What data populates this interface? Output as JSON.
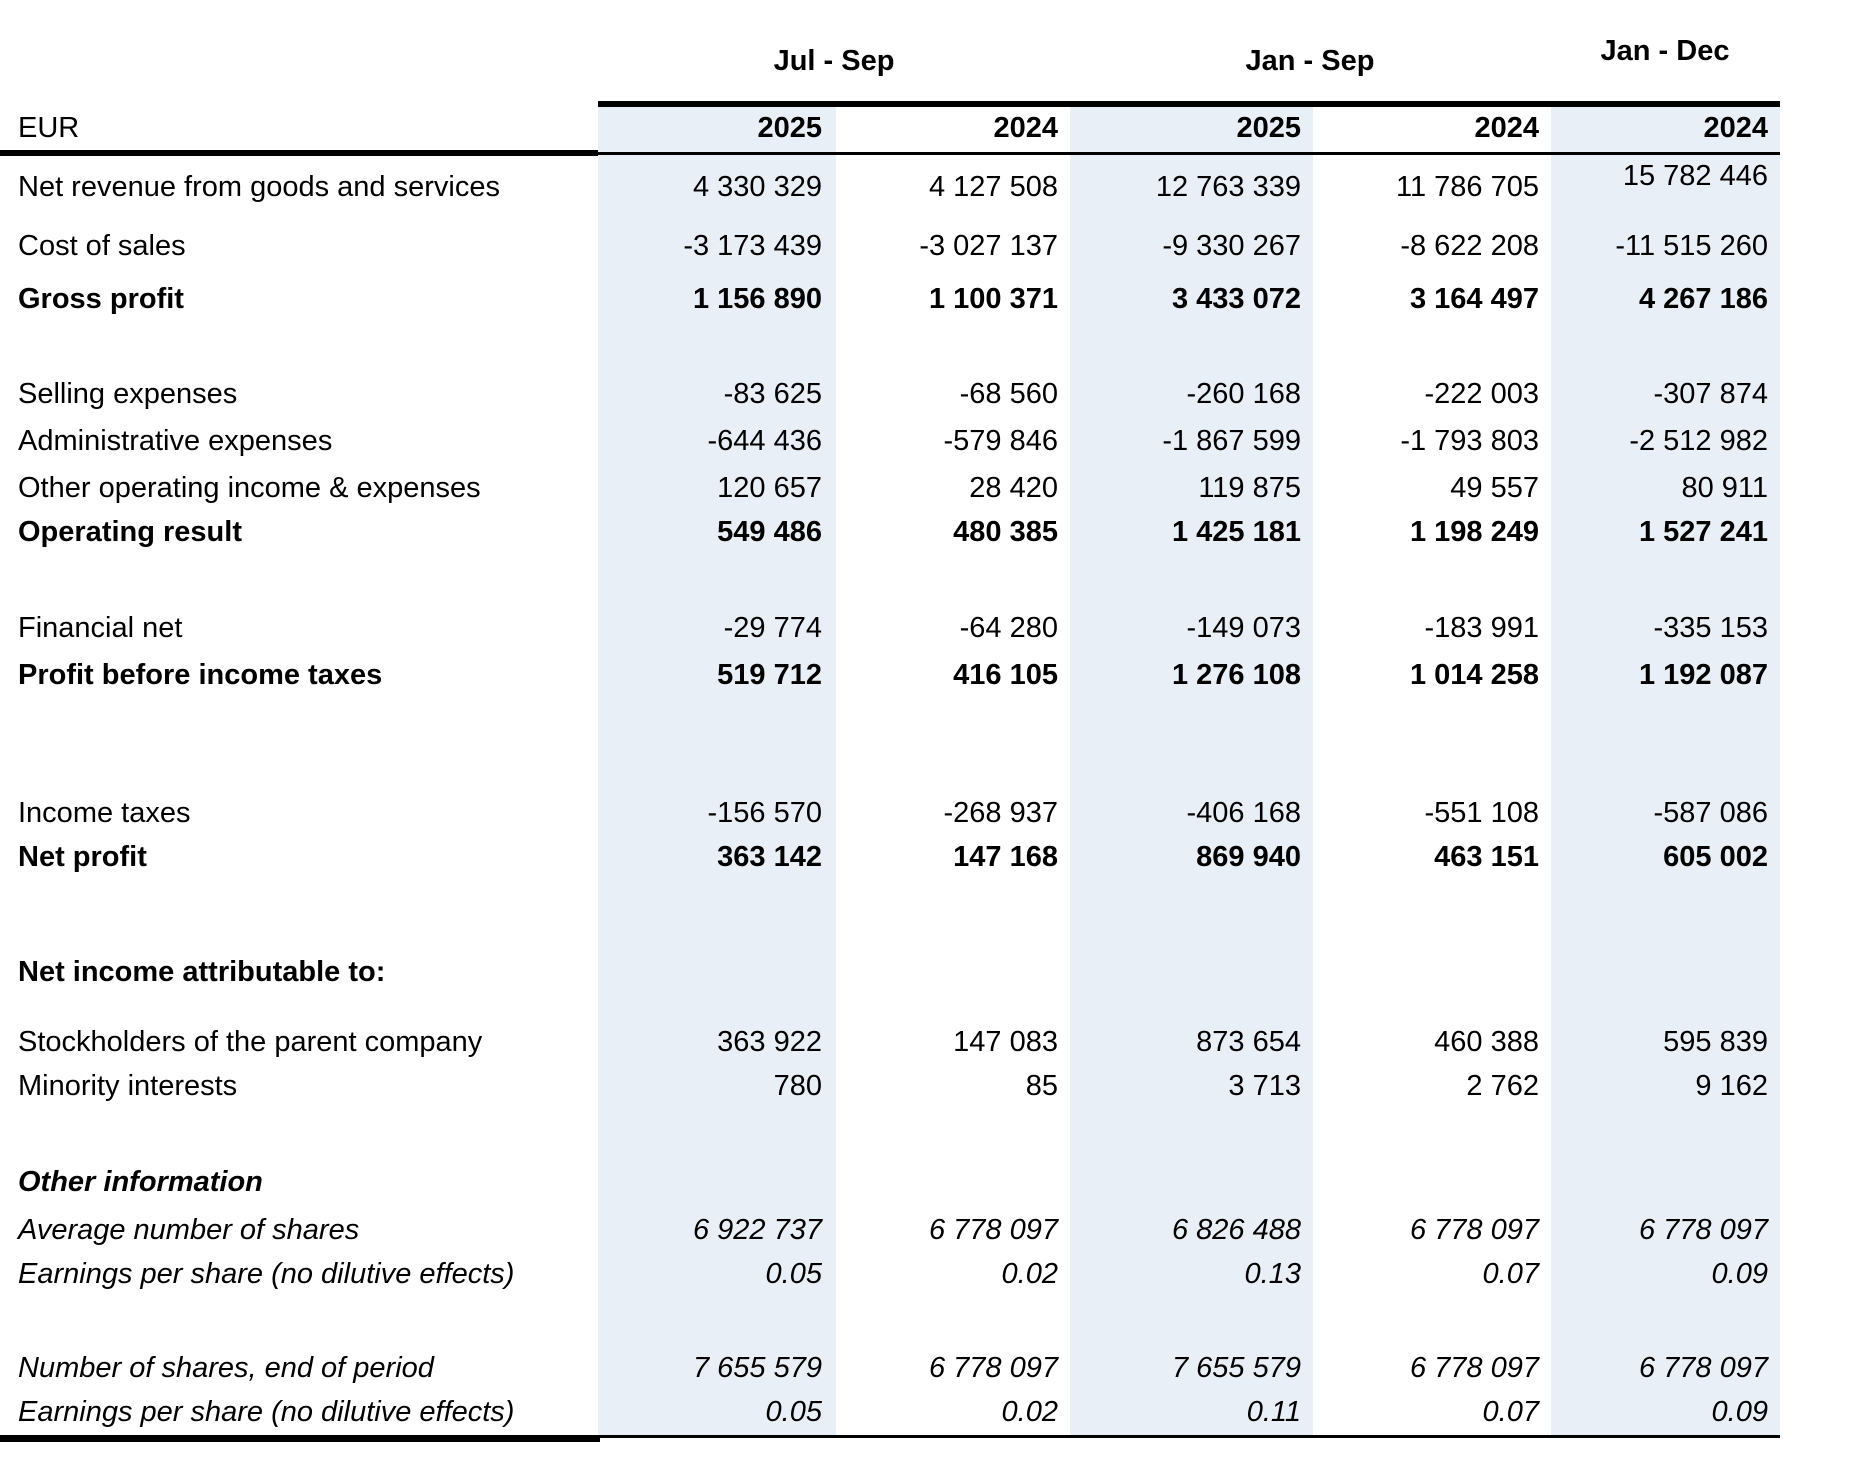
{
  "colors": {
    "background": "#ffffff",
    "shaded_column": "#e8eff7",
    "border": "#000000",
    "text": "#000000"
  },
  "table": {
    "unit_label": "EUR",
    "column_groups": [
      {
        "label": "Jul - Sep",
        "span": 2
      },
      {
        "label": "Jan - Sep",
        "span": 2
      },
      {
        "label": "Jan - Dec",
        "span": 1
      }
    ],
    "year_headers": [
      "2025",
      "2024",
      "2025",
      "2024",
      "2024"
    ],
    "rows": [
      {
        "label": "Net revenue from goods and services",
        "style": "normal",
        "values": [
          "4 330 329",
          "4 127 508",
          "12 763 339",
          "11 786 705",
          "15 782 446"
        ]
      },
      {
        "label": "Cost of sales",
        "style": "normal",
        "values": [
          "-3 173 439",
          "-3 027 137",
          "-9 330 267",
          "-8 622 208",
          "-11 515 260"
        ]
      },
      {
        "label": "Gross profit",
        "style": "bold",
        "values": [
          "1 156 890",
          "1 100 371",
          "3 433 072",
          "3 164 497",
          "4 267 186"
        ]
      },
      {
        "label": "Selling expenses",
        "style": "normal",
        "values": [
          "-83 625",
          "-68 560",
          "-260 168",
          "-222 003",
          "-307 874"
        ]
      },
      {
        "label": "Administrative expenses",
        "style": "normal",
        "values": [
          "-644 436",
          "-579 846",
          "-1 867 599",
          "-1 793 803",
          "-2 512 982"
        ]
      },
      {
        "label": "Other operating income & expenses",
        "style": "normal",
        "values": [
          "120 657",
          "28 420",
          "119 875",
          "49 557",
          "80 911"
        ]
      },
      {
        "label": "Operating result",
        "style": "bold",
        "values": [
          "549 486",
          "480 385",
          "1 425 181",
          "1 198 249",
          "1 527 241"
        ]
      },
      {
        "label": "Financial net",
        "style": "normal",
        "values": [
          "-29 774",
          "-64 280",
          "-149 073",
          "-183 991",
          "-335 153"
        ]
      },
      {
        "label": "Profit before income taxes",
        "style": "bold",
        "values": [
          "519 712",
          "416 105",
          "1 276 108",
          "1 014 258",
          "1 192 087"
        ]
      },
      {
        "label": "Income taxes",
        "style": "normal",
        "values": [
          "-156 570",
          "-268 937",
          "-406 168",
          "-551 108",
          "-587 086"
        ]
      },
      {
        "label": "Net profit",
        "style": "bold",
        "values": [
          "363 142",
          "147 168",
          "869 940",
          "463 151",
          "605 002"
        ]
      },
      {
        "label": "Net income attributable to:",
        "style": "bold",
        "values": [
          "",
          "",
          "",
          "",
          ""
        ]
      },
      {
        "label": "Stockholders of the parent company",
        "style": "normal",
        "values": [
          "363 922",
          "147 083",
          "873 654",
          "460 388",
          "595 839"
        ]
      },
      {
        "label": "Minority interests",
        "style": "normal",
        "values": [
          "780",
          "85",
          "3 713",
          "2 762",
          "9 162"
        ]
      },
      {
        "label": "Other information",
        "style": "bold-italic",
        "values": [
          "",
          "",
          "",
          "",
          ""
        ]
      },
      {
        "label": "Average number of shares",
        "style": "italic",
        "values": [
          "6 922 737",
          "6 778 097",
          "6 826 488",
          "6 778 097",
          "6 778 097"
        ]
      },
      {
        "label": "Earnings per share (no dilutive effects)",
        "style": "italic",
        "values": [
          "0.05",
          "0.02",
          "0.13",
          "0.07",
          "0.09"
        ]
      },
      {
        "label": "Number of shares, end of period",
        "style": "italic",
        "values": [
          "7 655 579",
          "6 778 097",
          "7 655 579",
          "6 778 097",
          "6 778 097"
        ]
      },
      {
        "label": "Earnings per share (no dilutive effects)",
        "style": "italic",
        "values": [
          "0.05",
          "0.02",
          "0.11",
          "0.07",
          "0.09"
        ]
      }
    ]
  }
}
